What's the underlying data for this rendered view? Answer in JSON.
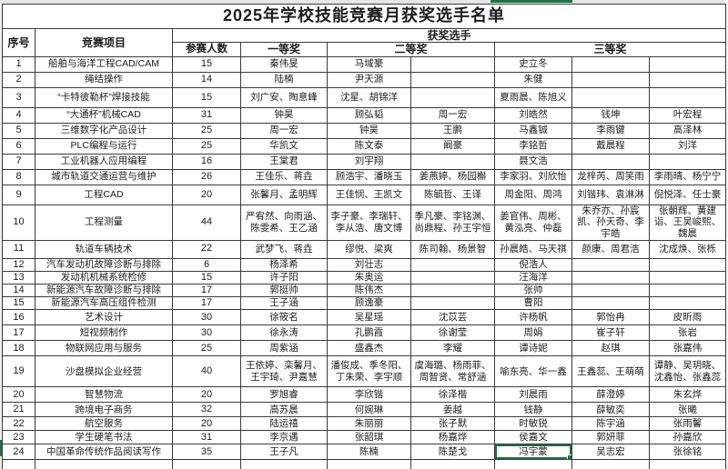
{
  "title": "2025年学校技能竞赛月获奖选手名单",
  "header": {
    "index": "序号",
    "project": "竞赛项目",
    "winners_group": "获奖选手",
    "participants": "参赛人数",
    "first_prize": "一等奖",
    "second_prize": "二等奖",
    "third_prize": "三等奖"
  },
  "colors": {
    "selection_green": "#1f7145",
    "grid_line": "#3b3b3b"
  },
  "selection": {
    "row_no": "24",
    "prize": "third",
    "slot": 0,
    "value": "冯宇蒙"
  },
  "rows": [
    {
      "no": "1",
      "project": "船舶与海洋工程CAD/CAM",
      "participants": "15",
      "first": "秦伟旻",
      "second": [
        "马域豪",
        ""
      ],
      "third": [
        "史立冬",
        "",
        ""
      ]
    },
    {
      "no": "2",
      "project": "绳结操作",
      "participants": "14",
      "first": "陆楠",
      "second": [
        "尹天源",
        ""
      ],
      "third": [
        "朱健",
        "",
        ""
      ]
    },
    {
      "no": "3",
      "project": "“卡特彼勒杯”焊接技能",
      "participants": "15",
      "first": "刘广安、陶意峰",
      "second": [
        "沈星、胡锦洋",
        ""
      ],
      "third": [
        "夏雨晨、陈旭义",
        "",
        ""
      ]
    },
    {
      "no": "4",
      "project": "“大通杯”机械CAD",
      "participants": "31",
      "first": "钟昊",
      "second": [
        "顾弘韬",
        "周一宏"
      ],
      "third": [
        "刘皓然",
        "钱坤",
        "叶宏程"
      ]
    },
    {
      "no": "5",
      "project": "三维数字化产品设计",
      "participants": "25",
      "first": "周一宏",
      "second": [
        "钟昊",
        "王鹏"
      ],
      "third": [
        "马鑫铖",
        "李雨键",
        "高泽林"
      ]
    },
    {
      "no": "6",
      "project": "PLC编程与运行",
      "participants": "25",
      "first": "华凯文",
      "second": [
        "陈文泰",
        "阚豪"
      ],
      "third": [
        "李铭哲",
        "戴晨程",
        "刘洋"
      ]
    },
    {
      "no": "7",
      "project": "工业机器人应用编程",
      "participants": "16",
      "first": "王棠君",
      "second": [
        "刘宇翔",
        ""
      ],
      "third": [
        "聂文浩",
        "",
        ""
      ]
    },
    {
      "no": "8",
      "project": "城市轨道交通运营与维护",
      "participants": "26",
      "first": "王佳乐、蒋垚",
      "second": [
        "顾浩宇、潘晓玉",
        "姜燕婷、杨园槲"
      ],
      "third": [
        "李家羽、刘欣怡",
        "龙梓芮、周笑雨",
        "李雨晴、杨宁宁"
      ]
    },
    {
      "no": "9",
      "project": "工程CAD",
      "participants": "20",
      "first": "张馨月、孟明辉",
      "second": [
        "王佳悯、王凯文",
        "陈毓哲、王译"
      ],
      "third": [
        "周金阳、周鸿",
        "刘锴玮、袁淋淋",
        "倪悦泽、任士豪"
      ]
    },
    {
      "no": "10",
      "project": "工程测量",
      "participants": "44",
      "first": "严宥然、向雨涵、陈雯希、王乙涵",
      "second": [
        "李子豪、李瑞轩、李从浩、唐文博",
        "季凡豪、李铭渊、尚鼎程、孙王宇恒"
      ],
      "third": [
        "姜官伟、周彬、黄泓亮、仲磊",
        "朱乔亦、孙宸凯、孙天奇、李宇皓",
        "张朝辉、黄建诣、王吴峻熙、魏晨"
      ]
    },
    {
      "no": "11",
      "project": "轨道车辆技术",
      "participants": "22",
      "first": "武梦飞、蒋垚",
      "second": [
        "缪悦、梁爽",
        "陈司翰、杨景智"
      ],
      "third": [
        "孙晨皓、马天祺",
        "颜康、周君浩",
        "沈成焕、张栎"
      ]
    },
    {
      "no": "12",
      "project": "汽车发动机故障诊断与排除",
      "participants": "6",
      "first": "杨泽希",
      "second": [
        "刘壮志",
        ""
      ],
      "third": [
        "倪浩人",
        "",
        ""
      ]
    },
    {
      "no": "13",
      "project": "发动机机械系统检修",
      "participants": "15",
      "first": "许子阳",
      "second": [
        "朱奥运",
        ""
      ],
      "third": [
        "汪海洋",
        "",
        ""
      ]
    },
    {
      "no": "14",
      "project": "新能源汽车故障诊断与排除",
      "participants": "17",
      "first": "郭挺帅",
      "second": [
        "陈伟杰",
        ""
      ],
      "third": [
        "张帅",
        "",
        ""
      ]
    },
    {
      "no": "15",
      "project": "新能源汽车高压组件检测",
      "participants": "17",
      "first": "王子涵",
      "second": [
        "顾逸豪",
        ""
      ],
      "third": [
        "曹阳",
        "",
        ""
      ]
    },
    {
      "no": "16",
      "project": "艺术设计",
      "participants": "30",
      "first": "徐筱名",
      "second": [
        "吴星瑶",
        "沈苡芸"
      ],
      "third": [
        "许杨帆",
        "郭怡冉",
        "皮昕雨"
      ]
    },
    {
      "no": "17",
      "project": "短视频制作",
      "participants": "30",
      "first": "徐永涛",
      "second": [
        "孔鹏霞",
        "徐谢莹"
      ],
      "third": [
        "周娟",
        "崔子轩",
        "张岩"
      ]
    },
    {
      "no": "18",
      "project": "物联网应用与服务",
      "participants": "25",
      "first": "周紫涵",
      "second": [
        "盛鑫杰",
        "李耀"
      ],
      "third": [
        "谭诗妮",
        "赵琪",
        "张嘉伟"
      ]
    },
    {
      "no": "19",
      "project": "沙盘模拟企业经营",
      "participants": "40",
      "first": "王依婷、栾馨月、王宇琦、尹嘉慧",
      "second": [
        "潘俊成、季冬阳、丁朱荣、李宇顺",
        "虞海璐、杨雨菲、周智贤、常舒涵"
      ],
      "third": [
        "喻东亮、华一鑫",
        "王鑫蕊、王萌萌",
        "谭静、吴玥晓、沈鑫怡、张鑫蕊"
      ]
    },
    {
      "no": "20",
      "project": "智慧物流",
      "participants": "20",
      "first": "罗旭睿",
      "second": [
        "李欣锴",
        "徐泽楷"
      ],
      "third": [
        "刘晨雨",
        "薛澄婷",
        "朱玄烨"
      ]
    },
    {
      "no": "21",
      "project": "跨境电子商务",
      "participants": "32",
      "first": "高苏晨",
      "second": [
        "何婉琳",
        "姜越"
      ],
      "third": [
        "钱静",
        "薛敏奕",
        "张曦"
      ]
    },
    {
      "no": "22",
      "project": "航空服务",
      "participants": "20",
      "first": "陆运禧",
      "second": [
        "朱丽丽",
        "张子默"
      ],
      "third": [
        "时敏锐",
        "陈宇涵",
        "张雨馨"
      ]
    },
    {
      "no": "23",
      "project": "学生硬笔书法",
      "participants": "31",
      "first": "李京遇",
      "second": [
        "张韶琪",
        "杨嘉烨"
      ],
      "third": [
        "侯嘉文",
        "郭妍菲",
        "孙嘉欣"
      ]
    },
    {
      "no": "24",
      "project": "中国革命传统作品阅读写作",
      "participants": "35",
      "first": "王子凡",
      "second": [
        "陈楠",
        "陈楚戈"
      ],
      "third": [
        "冯宇蒙",
        "吴志宏",
        "张徐铭"
      ]
    }
  ]
}
